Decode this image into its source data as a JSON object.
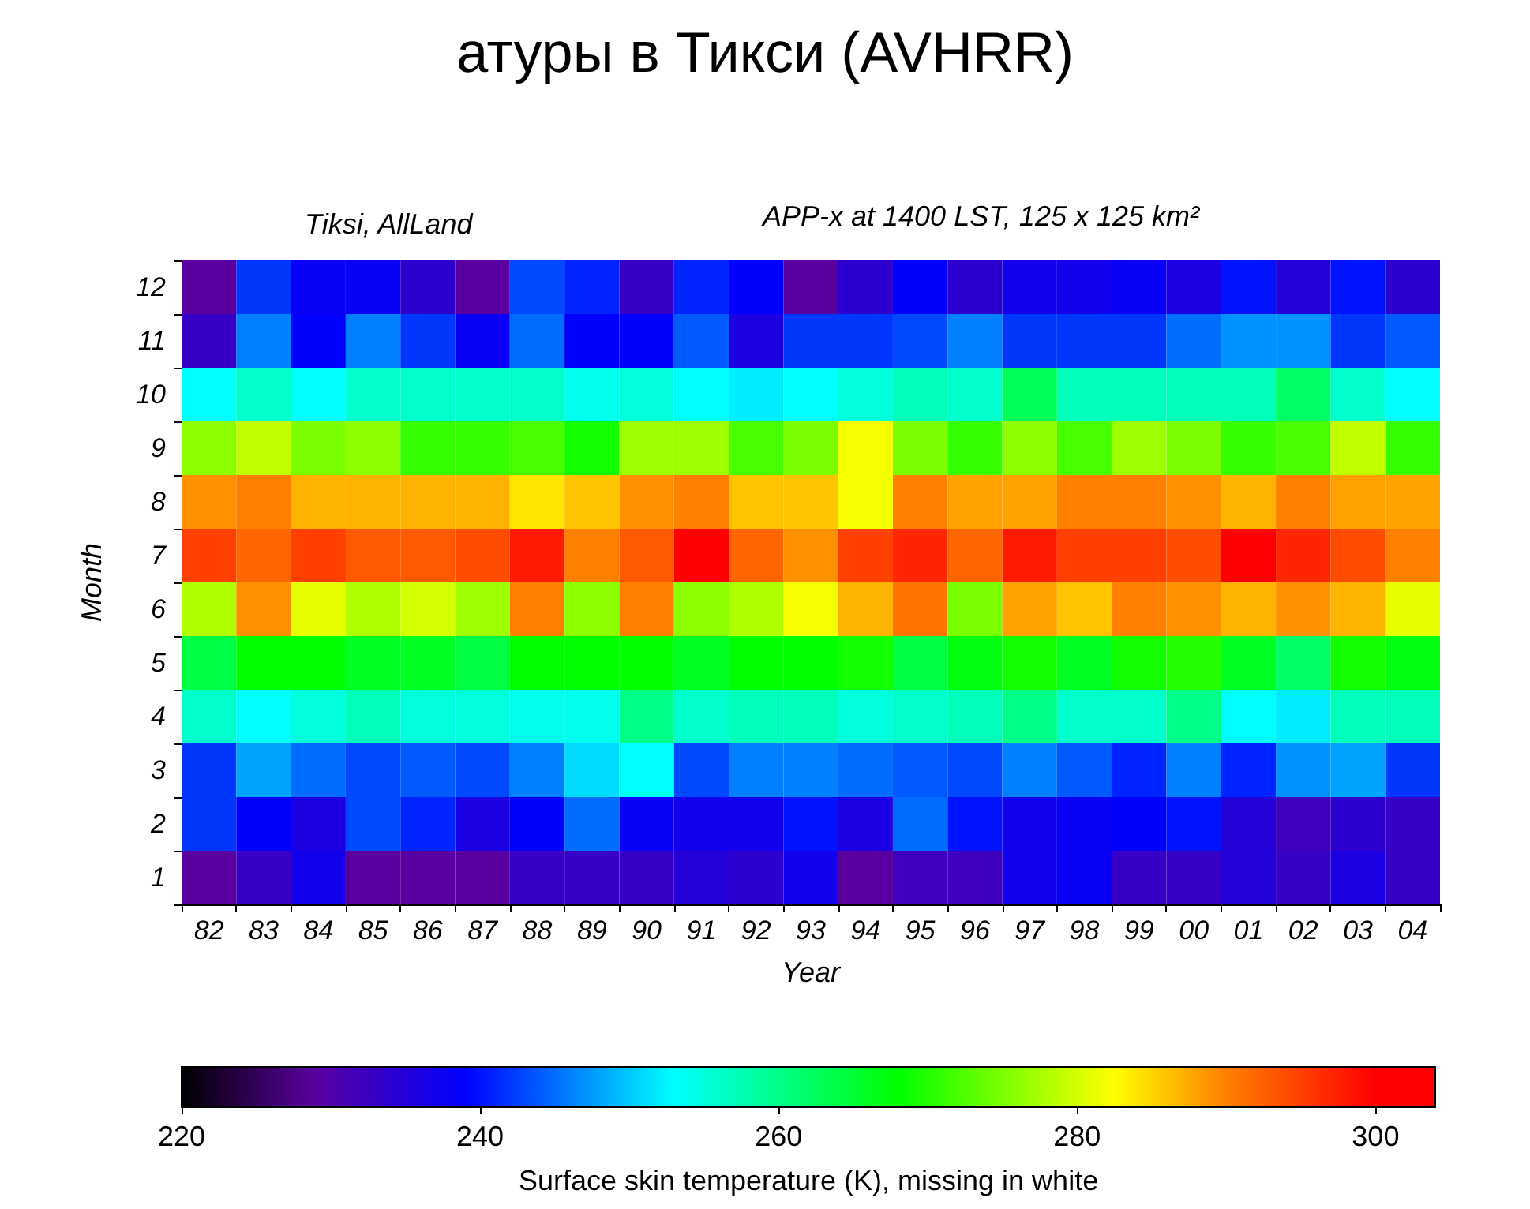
{
  "chart_data": {
    "type": "heatmap",
    "title": "атуры в Тикси (AVHRR)",
    "subtitle": "Tiksi, AllLand",
    "annotations": [
      "APP-x at 1400 LST, 125 x 125 km²"
    ],
    "xlabel": "Year",
    "ylabel": "Month",
    "clabel": "Surface skin temperature (K), missing in white",
    "categories": [
      "82",
      "83",
      "84",
      "85",
      "86",
      "87",
      "88",
      "89",
      "90",
      "91",
      "92",
      "93",
      "94",
      "95",
      "96",
      "97",
      "98",
      "99",
      "00",
      "01",
      "02",
      "03",
      "04"
    ],
    "y_categories": [
      "12",
      "11",
      "10",
      "9",
      "8",
      "7",
      "6",
      "5",
      "4",
      "3",
      "2",
      "1"
    ],
    "cells": [
      [
        229,
        242,
        238,
        238,
        234,
        229,
        243,
        241,
        233,
        241,
        239,
        229,
        234,
        239,
        234,
        237,
        237,
        238,
        236,
        240,
        235,
        240,
        234
      ],
      [
        233,
        246,
        239,
        246,
        242,
        238,
        245,
        239,
        239,
        244,
        236,
        242,
        242,
        243,
        246,
        242,
        242,
        242,
        245,
        247,
        247,
        242,
        244
      ],
      [
        253,
        256,
        253,
        256,
        256,
        256,
        256,
        254,
        255,
        253,
        252,
        253,
        255,
        257,
        256,
        263,
        257,
        257,
        257,
        257,
        262,
        256,
        253
      ],
      [
        276,
        279,
        275,
        276,
        271,
        271,
        272,
        269,
        277,
        277,
        272,
        275,
        282,
        275,
        271,
        276,
        272,
        277,
        275,
        271,
        272,
        279,
        271
      ],
      [
        289,
        290,
        287,
        287,
        287,
        287,
        284,
        286,
        289,
        290,
        286,
        286,
        282,
        290,
        288,
        288,
        290,
        290,
        289,
        287,
        290,
        288,
        288
      ],
      [
        295,
        292,
        295,
        293,
        293,
        294,
        298,
        290,
        293,
        300,
        292,
        289,
        295,
        297,
        292,
        298,
        295,
        295,
        294,
        300,
        297,
        294,
        290
      ],
      [
        278,
        289,
        281,
        278,
        280,
        277,
        290,
        276,
        290,
        276,
        278,
        282,
        287,
        291,
        275,
        288,
        286,
        290,
        289,
        287,
        289,
        287,
        281
      ],
      [
        264,
        268,
        268,
        266,
        266,
        264,
        268,
        268,
        268,
        266,
        268,
        268,
        269,
        264,
        267,
        269,
        266,
        269,
        270,
        266,
        262,
        269,
        267
      ],
      [
        256,
        253,
        255,
        257,
        255,
        255,
        254,
        254,
        260,
        256,
        257,
        257,
        255,
        256,
        257,
        260,
        256,
        256,
        260,
        253,
        252,
        257,
        257
      ],
      [
        242,
        248,
        245,
        243,
        244,
        243,
        246,
        251,
        253,
        243,
        246,
        246,
        245,
        244,
        243,
        246,
        244,
        241,
        246,
        241,
        247,
        248,
        242
      ],
      [
        242,
        239,
        236,
        243,
        241,
        236,
        239,
        245,
        238,
        237,
        237,
        240,
        236,
        245,
        240,
        237,
        238,
        239,
        240,
        235,
        232,
        234,
        233
      ],
      [
        229,
        233,
        237,
        229,
        229,
        229,
        233,
        233,
        233,
        235,
        234,
        237,
        229,
        232,
        232,
        237,
        238,
        233,
        233,
        235,
        233,
        236,
        233
      ]
    ],
    "clim": [
      220,
      304
    ],
    "cticks": [
      220,
      240,
      260,
      280,
      300
    ]
  }
}
